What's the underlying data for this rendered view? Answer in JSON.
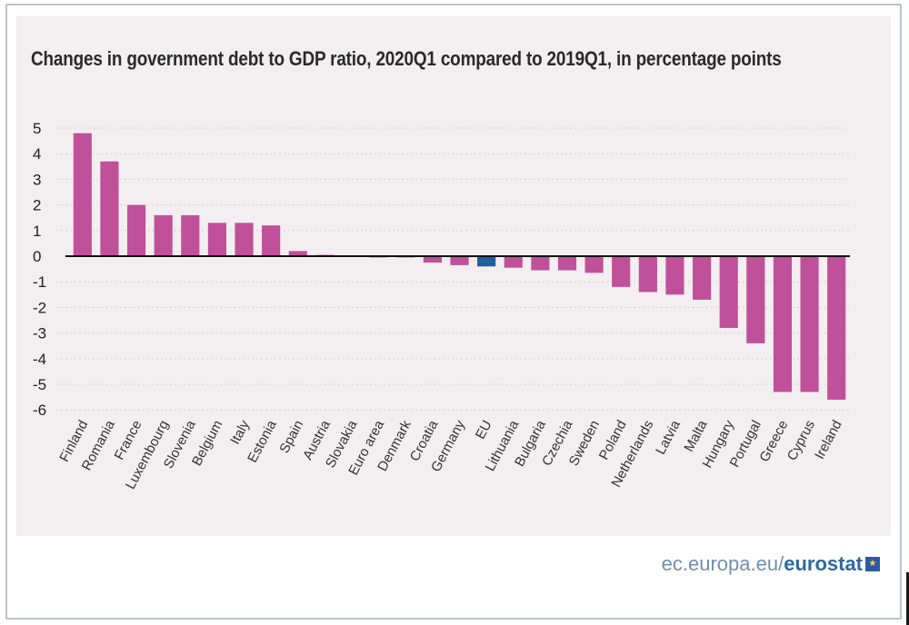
{
  "chart_data": {
    "type": "bar",
    "title": "Changes in government debt to GDP ratio, 2020Q1 compared to 2019Q1, in percentage points",
    "categories": [
      "Finland",
      "Romania",
      "France",
      "Luxembourg",
      "Slovenia",
      "Belgium",
      "Italy",
      "Estonia",
      "Spain",
      "Austria",
      "Slovakia",
      "Euro area",
      "Denmark",
      "Croatia",
      "Germany",
      "EU",
      "Lithuania",
      "Bulgaria",
      "Czechia",
      "Sweden",
      "Poland",
      "Netherlands",
      "Latvia",
      "Malta",
      "Hungary",
      "Portugal",
      "Greece",
      "Cyprus",
      "Ireland"
    ],
    "values": [
      4.8,
      3.7,
      2.0,
      1.6,
      1.6,
      1.3,
      1.3,
      1.2,
      0.2,
      0.05,
      0.0,
      -0.05,
      -0.05,
      -0.25,
      -0.35,
      -0.4,
      -0.45,
      -0.55,
      -0.55,
      -0.65,
      -1.2,
      -1.4,
      -1.5,
      -1.7,
      -2.8,
      -3.4,
      -5.3,
      -5.3,
      -5.6
    ],
    "highlight": "EU",
    "colors": {
      "bar": "#c0509a",
      "highlight": "#1f5f9e",
      "grid": "#d8cfd3",
      "axis": "#111111"
    },
    "yticks": [
      5,
      4,
      3,
      2,
      1,
      0,
      -1,
      -2,
      -3,
      -4,
      -5,
      -6
    ],
    "ytick_labels": [
      "5",
      "4",
      "3",
      "2",
      "1",
      "0",
      "-1",
      "-2",
      "-3",
      "-4",
      "-5",
      "-6"
    ],
    "ylim": [
      -6,
      5
    ],
    "grid": true,
    "xlabel": "",
    "ylabel": ""
  },
  "footer": {
    "site": "ec.europa.eu",
    "sep": "/",
    "brand": "eurostat",
    "logo_icon": "eu-flag-icon",
    "logo_glyph": "★"
  }
}
